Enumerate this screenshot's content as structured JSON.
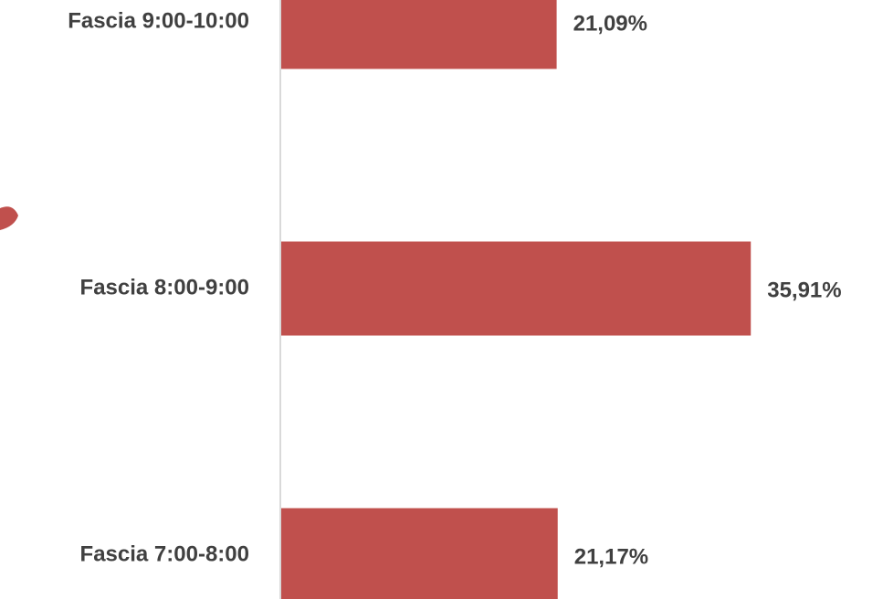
{
  "chart_data": {
    "type": "bar",
    "orientation": "horizontal",
    "categories": [
      "Fascia 9:00-10:00",
      "Fascia 8:00-9:00",
      "Fascia 7:00-8:00"
    ],
    "values": [
      21.09,
      35.91,
      21.17
    ],
    "value_labels": [
      "21,09%",
      "35,91%",
      "21,17%"
    ],
    "color": "#c0504d",
    "xlim": [
      0,
      46
    ]
  }
}
